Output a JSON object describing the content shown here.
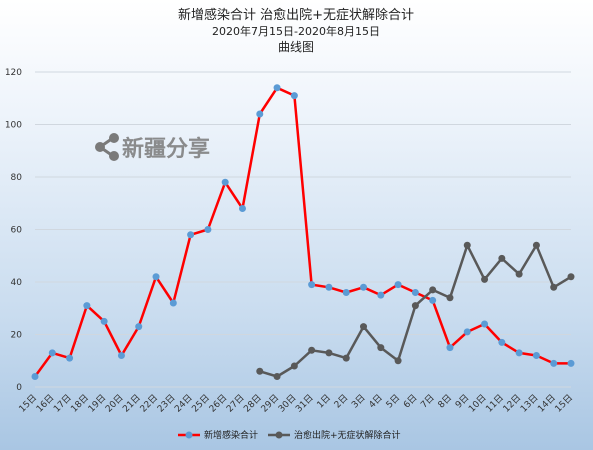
{
  "chart_data": {
    "type": "line",
    "title": "新增感染合计 治愈出院+无症状解除合计",
    "subtitle": "2020年7月15日-2020年8月15日",
    "subtitle2": "曲线图",
    "categories": [
      "15日",
      "16日",
      "17日",
      "18日",
      "19日",
      "20日",
      "21日",
      "22日",
      "23日",
      "24日",
      "25日",
      "26日",
      "27日",
      "28日",
      "29日",
      "30日",
      "31日",
      "1日",
      "2日",
      "3日",
      "4日",
      "5日",
      "6日",
      "7日",
      "8日",
      "9日",
      "10日",
      "11日",
      "12日",
      "13日",
      "14日",
      "15日"
    ],
    "ylim": [
      0,
      120
    ],
    "yticks": [
      0,
      20,
      40,
      60,
      80,
      100,
      120
    ],
    "grid": true,
    "legend_position": "bottom",
    "series": [
      {
        "name": "新增感染合计",
        "color": "#ff0000",
        "marker_color": "#5b9bd5",
        "values": [
          4,
          13,
          11,
          31,
          25,
          12,
          23,
          42,
          32,
          58,
          60,
          78,
          68,
          104,
          114,
          111,
          39,
          38,
          36,
          38,
          35,
          39,
          36,
          33,
          15,
          21,
          24,
          17,
          13,
          12,
          9,
          9
        ]
      },
      {
        "name": "治愈出院+无症状解除合计",
        "color": "#595959",
        "marker_color": "#595959",
        "values": [
          null,
          null,
          null,
          null,
          null,
          null,
          null,
          null,
          null,
          null,
          null,
          null,
          null,
          6,
          4,
          8,
          14,
          13,
          11,
          23,
          15,
          10,
          31,
          37,
          34,
          54,
          41,
          49,
          43,
          54,
          38,
          42
        ]
      }
    ]
  },
  "watermark": {
    "text": "新疆分享",
    "icon": "share-icon"
  }
}
